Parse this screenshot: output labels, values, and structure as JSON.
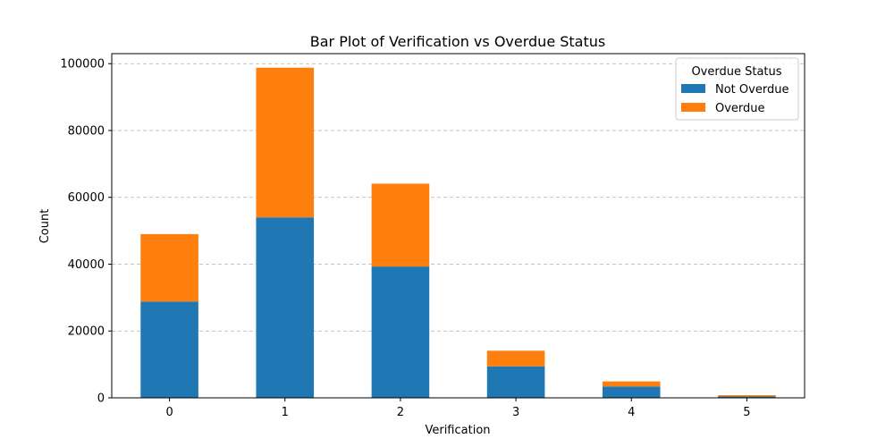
{
  "chart_data": {
    "type": "bar",
    "stacked": true,
    "title": "Bar Plot of Verification vs Overdue Status",
    "xlabel": "Verification",
    "ylabel": "Count",
    "categories": [
      "0",
      "1",
      "2",
      "3",
      "4",
      "5"
    ],
    "series": [
      {
        "name": "Not Overdue",
        "color": "#1f77b4",
        "values": [
          28800,
          54000,
          39300,
          9400,
          3400,
          400
        ]
      },
      {
        "name": "Overdue",
        "color": "#ff7f0e",
        "values": [
          20200,
          44800,
          24800,
          4700,
          1500,
          400
        ]
      }
    ],
    "ylim": [
      0,
      103000
    ],
    "yticks": [
      0,
      20000,
      40000,
      60000,
      80000,
      100000
    ],
    "grid": "y-dashed",
    "legend": {
      "title": "Overdue Status",
      "position": "top-right"
    }
  }
}
